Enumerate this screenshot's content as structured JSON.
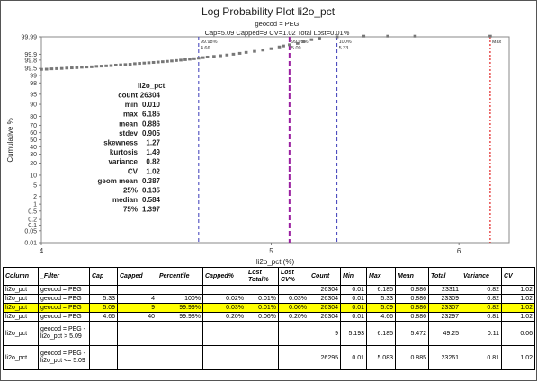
{
  "chart_data": {
    "type": "scatter",
    "title": "Log Probability Plot li2o_pct",
    "subtitle1": "geocod = PEG",
    "subtitle2": "Cap=5.09 Capped=9 CV=1.02 Total Lost=0.01%",
    "xlabel": "li2o_pct (%)",
    "ylabel": "Cumulative %",
    "x_scale": "log",
    "xlim": [
      4,
      6.3
    ],
    "x_ticks": [
      "4",
      "5",
      "6"
    ],
    "y_scale": "probability",
    "y_ticks": [
      "99.99",
      "99.9",
      "99.8",
      "99.5",
      "99",
      "98",
      "95",
      "90",
      "80",
      "70",
      "60",
      "50",
      "40",
      "30",
      "20",
      "10",
      "5",
      "2",
      "1",
      "0.5",
      "0.2",
      "0.1",
      "0.05",
      "0.01"
    ],
    "points": [
      [
        4.0,
        99.45
      ],
      [
        4.02,
        99.46
      ],
      [
        4.04,
        99.48
      ],
      [
        4.06,
        99.49
      ],
      [
        4.08,
        99.5
      ],
      [
        4.1,
        99.52
      ],
      [
        4.12,
        99.53
      ],
      [
        4.14,
        99.54
      ],
      [
        4.16,
        99.56
      ],
      [
        4.18,
        99.57
      ],
      [
        4.2,
        99.58
      ],
      [
        4.22,
        99.6
      ],
      [
        4.24,
        99.61
      ],
      [
        4.26,
        99.62
      ],
      [
        4.28,
        99.63
      ],
      [
        4.3,
        99.65
      ],
      [
        4.32,
        99.66
      ],
      [
        4.34,
        99.67
      ],
      [
        4.36,
        99.68
      ],
      [
        4.38,
        99.7
      ],
      [
        4.4,
        99.71
      ],
      [
        4.42,
        99.72
      ],
      [
        4.44,
        99.73
      ],
      [
        4.46,
        99.74
      ],
      [
        4.48,
        99.75
      ],
      [
        4.5,
        99.76
      ],
      [
        4.52,
        99.77
      ],
      [
        4.54,
        99.78
      ],
      [
        4.56,
        99.79
      ],
      [
        4.58,
        99.8
      ],
      [
        4.6,
        99.81
      ],
      [
        4.62,
        99.82
      ],
      [
        4.64,
        99.83
      ],
      [
        4.66,
        99.84
      ],
      [
        4.68,
        99.85
      ],
      [
        4.7,
        99.86
      ],
      [
        4.73,
        99.87
      ],
      [
        4.76,
        99.88
      ],
      [
        4.79,
        99.89
      ],
      [
        4.82,
        99.9
      ],
      [
        4.85,
        99.91
      ],
      [
        4.88,
        99.92
      ],
      [
        4.92,
        99.93
      ],
      [
        4.96,
        99.94
      ],
      [
        5.0,
        99.95
      ],
      [
        5.04,
        99.96
      ],
      [
        5.06,
        99.965
      ],
      [
        5.09,
        99.97
      ],
      [
        5.13,
        99.975
      ],
      [
        5.16,
        99.98
      ],
      [
        5.2,
        99.985
      ],
      [
        5.24,
        99.988
      ],
      [
        5.33,
        99.99
      ],
      [
        5.47,
        99.991
      ],
      [
        5.6,
        99.991
      ],
      [
        5.75,
        99.991
      ],
      [
        6.185,
        99.991
      ]
    ],
    "cap_lines": [
      {
        "x": 4.66,
        "label1": "99.98%",
        "label2": "4.66",
        "color": "#3a3ab8",
        "dash": "4,3",
        "width": 1
      },
      {
        "x": 5.09,
        "label1": "99.99%",
        "label2": "5.09",
        "color": "#9a1fa0",
        "dash": "6,3",
        "width": 2
      },
      {
        "x": 5.33,
        "label1": "100%",
        "label2": "5.33",
        "color": "#3a3ab8",
        "dash": "4,3",
        "width": 1
      },
      {
        "x": 6.185,
        "label1": "Max",
        "label2": "",
        "color": "#e02020",
        "dash": "2,2",
        "width": 1.2
      }
    ],
    "stats": {
      "header": "li2o_pct",
      "rows": [
        [
          "count",
          "26304"
        ],
        [
          "min",
          "0.010"
        ],
        [
          "max",
          "6.185"
        ],
        [
          "mean",
          "0.886"
        ],
        [
          "stdev",
          "0.905"
        ],
        [
          "skewness",
          "1.27"
        ],
        [
          "kurtosis",
          "1.49"
        ],
        [
          "variance",
          "0.82"
        ],
        [
          "CV",
          "1.02"
        ],
        [
          "geom mean",
          "0.387"
        ],
        [
          "25%",
          "0.135"
        ],
        [
          "median",
          "0.584"
        ],
        [
          "75%",
          "1.397"
        ]
      ]
    }
  },
  "table": {
    "headers": [
      "Column",
      "_Filter",
      "Cap",
      "Capped",
      "Percentile",
      "Capped%",
      "Lost Total%",
      "Lost CV%",
      "Count",
      "Min",
      "Max",
      "Mean",
      "Total",
      "Variance",
      "CV"
    ],
    "rows": [
      {
        "cells": [
          "li2o_pct",
          "geocod = PEG",
          "",
          "",
          "",
          "",
          "",
          "",
          "26304",
          "0.01",
          "6.185",
          "0.886",
          "23311",
          "0.82",
          "1.02"
        ],
        "highlight": false,
        "tall": false
      },
      {
        "cells": [
          "li2o_pct",
          "geocod = PEG",
          "5.33",
          "4",
          "100%",
          "0.02%",
          "0.01%",
          "0.03%",
          "26304",
          "0.01",
          "5.33",
          "0.886",
          "23309",
          "0.82",
          "1.02"
        ],
        "highlight": false,
        "tall": false
      },
      {
        "cells": [
          "li2o_pct",
          "geocod = PEG",
          "5.09",
          "9",
          "99.99%",
          "0.03%",
          "0.01%",
          "0.06%",
          "26304",
          "0.01",
          "5.09",
          "0.886",
          "23307",
          "0.82",
          "1.02"
        ],
        "highlight": true,
        "tall": false
      },
      {
        "cells": [
          "li2o_pct",
          "geocod = PEG",
          "4.66",
          "40",
          "99.98%",
          "0.20%",
          "0.06%",
          "0.20%",
          "26304",
          "0.01",
          "4.66",
          "0.886",
          "23297",
          "0.81",
          "1.02"
        ],
        "highlight": false,
        "tall": false
      },
      {
        "cells": [
          "li2o_pct",
          "geocod = PEG - li2o_pct > 5.09",
          "",
          "",
          "",
          "",
          "",
          "",
          "9",
          "5.193",
          "6.185",
          "5.472",
          "49.25",
          "0.11",
          "0.06"
        ],
        "highlight": false,
        "tall": true
      },
      {
        "cells": [
          "li2o_pct",
          "geocod = PEG - li2o_pct <= 5.09",
          "",
          "",
          "",
          "",
          "",
          "",
          "26295",
          "0.01",
          "5.083",
          "0.885",
          "23261",
          "0.81",
          "1.02"
        ],
        "highlight": false,
        "tall": true
      }
    ]
  }
}
